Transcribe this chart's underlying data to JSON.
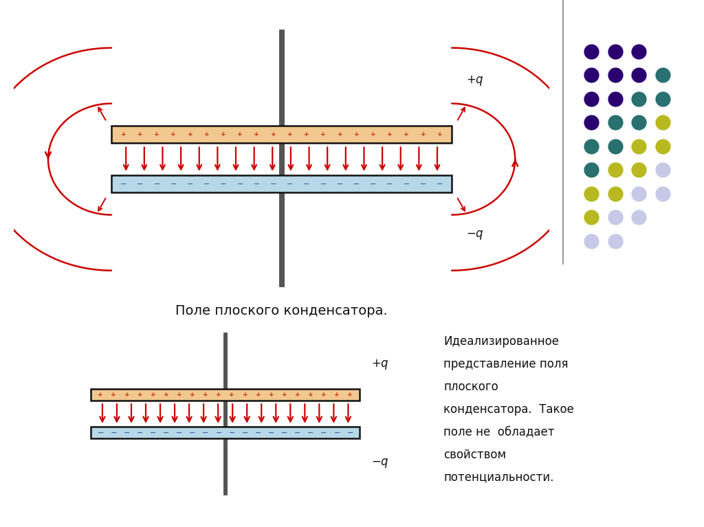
{
  "bg_color": "#f5e8d0",
  "plate_color_top": "#f0c890",
  "plate_color_bottom": "#b8d8e8",
  "plate_border_color": "#111111",
  "arrow_color": "#cc0000",
  "label_color": "#111111",
  "title_text": "Поле плоского конденсатора.",
  "side_text_lines": [
    "Идеализированное",
    "представление поля",
    "плоского",
    "конденсатора.  Такое",
    "поле не  обладает",
    "свойством",
    "потенциальности."
  ],
  "pole_color": "#555555",
  "separator_color": "#888888",
  "dot_grid": [
    [
      0,
      0,
      "#2a0070"
    ],
    [
      0,
      1,
      "#2a0070"
    ],
    [
      0,
      2,
      "#2a0070"
    ],
    [
      1,
      0,
      "#2a0070"
    ],
    [
      1,
      1,
      "#2a0070"
    ],
    [
      1,
      2,
      "#2a0070"
    ],
    [
      1,
      3,
      "#2a7070"
    ],
    [
      2,
      0,
      "#2a0070"
    ],
    [
      2,
      1,
      "#2a0070"
    ],
    [
      2,
      2,
      "#2a7070"
    ],
    [
      2,
      3,
      "#2a7070"
    ],
    [
      3,
      0,
      "#2a0070"
    ],
    [
      3,
      1,
      "#2a7070"
    ],
    [
      3,
      2,
      "#2a7070"
    ],
    [
      3,
      3,
      "#b8b820"
    ],
    [
      4,
      0,
      "#2a7070"
    ],
    [
      4,
      1,
      "#2a7070"
    ],
    [
      4,
      2,
      "#b8b820"
    ],
    [
      4,
      3,
      "#b8b820"
    ],
    [
      5,
      0,
      "#2a7070"
    ],
    [
      5,
      1,
      "#b8b820"
    ],
    [
      5,
      2,
      "#b8b820"
    ],
    [
      5,
      3,
      "#c8c8e8"
    ],
    [
      6,
      0,
      "#b8b820"
    ],
    [
      6,
      1,
      "#b8b820"
    ],
    [
      6,
      2,
      "#c8c8e8"
    ],
    [
      6,
      3,
      "#c8c8e8"
    ],
    [
      7,
      0,
      "#b8b820"
    ],
    [
      7,
      1,
      "#c8c8e8"
    ],
    [
      7,
      2,
      "#c8c8e8"
    ],
    [
      8,
      0,
      "#c8c8e8"
    ],
    [
      8,
      1,
      "#c8c8e8"
    ]
  ]
}
